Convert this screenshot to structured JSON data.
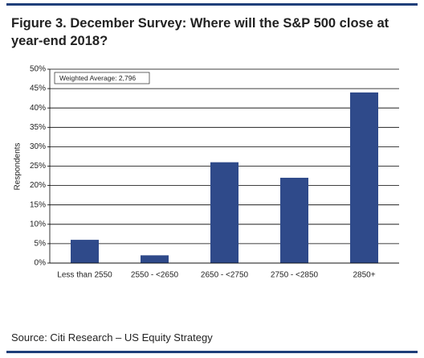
{
  "chart_data": {
    "type": "bar",
    "title": "Figure 3. December Survey: Where will the S&P 500 close at year-end 2018?",
    "annotation": "Weighted Average: 2,796",
    "y_label": "Respondents",
    "source": "Source: Citi Research – US Equity Strategy",
    "categories": [
      "Less than 2550",
      "2550 - <2650",
      "2650 - <2750",
      "2750 - <2850",
      "2850+"
    ],
    "values": [
      6,
      2,
      26,
      22,
      44
    ],
    "color": "#2f4a8a",
    "ylim": [
      0,
      50
    ],
    "yticks": [
      {
        "value": 0,
        "label": "0%"
      },
      {
        "value": 5,
        "label": "5%"
      },
      {
        "value": 10,
        "label": "10%"
      },
      {
        "value": 15,
        "label": "15%"
      },
      {
        "value": 20,
        "label": "20%"
      },
      {
        "value": 25,
        "label": "25%"
      },
      {
        "value": 30,
        "label": "30%"
      },
      {
        "value": 35,
        "label": "35%"
      },
      {
        "value": 40,
        "label": "40%"
      },
      {
        "value": 45,
        "label": "45%"
      },
      {
        "value": 50,
        "label": "50%"
      }
    ],
    "grid": true
  }
}
